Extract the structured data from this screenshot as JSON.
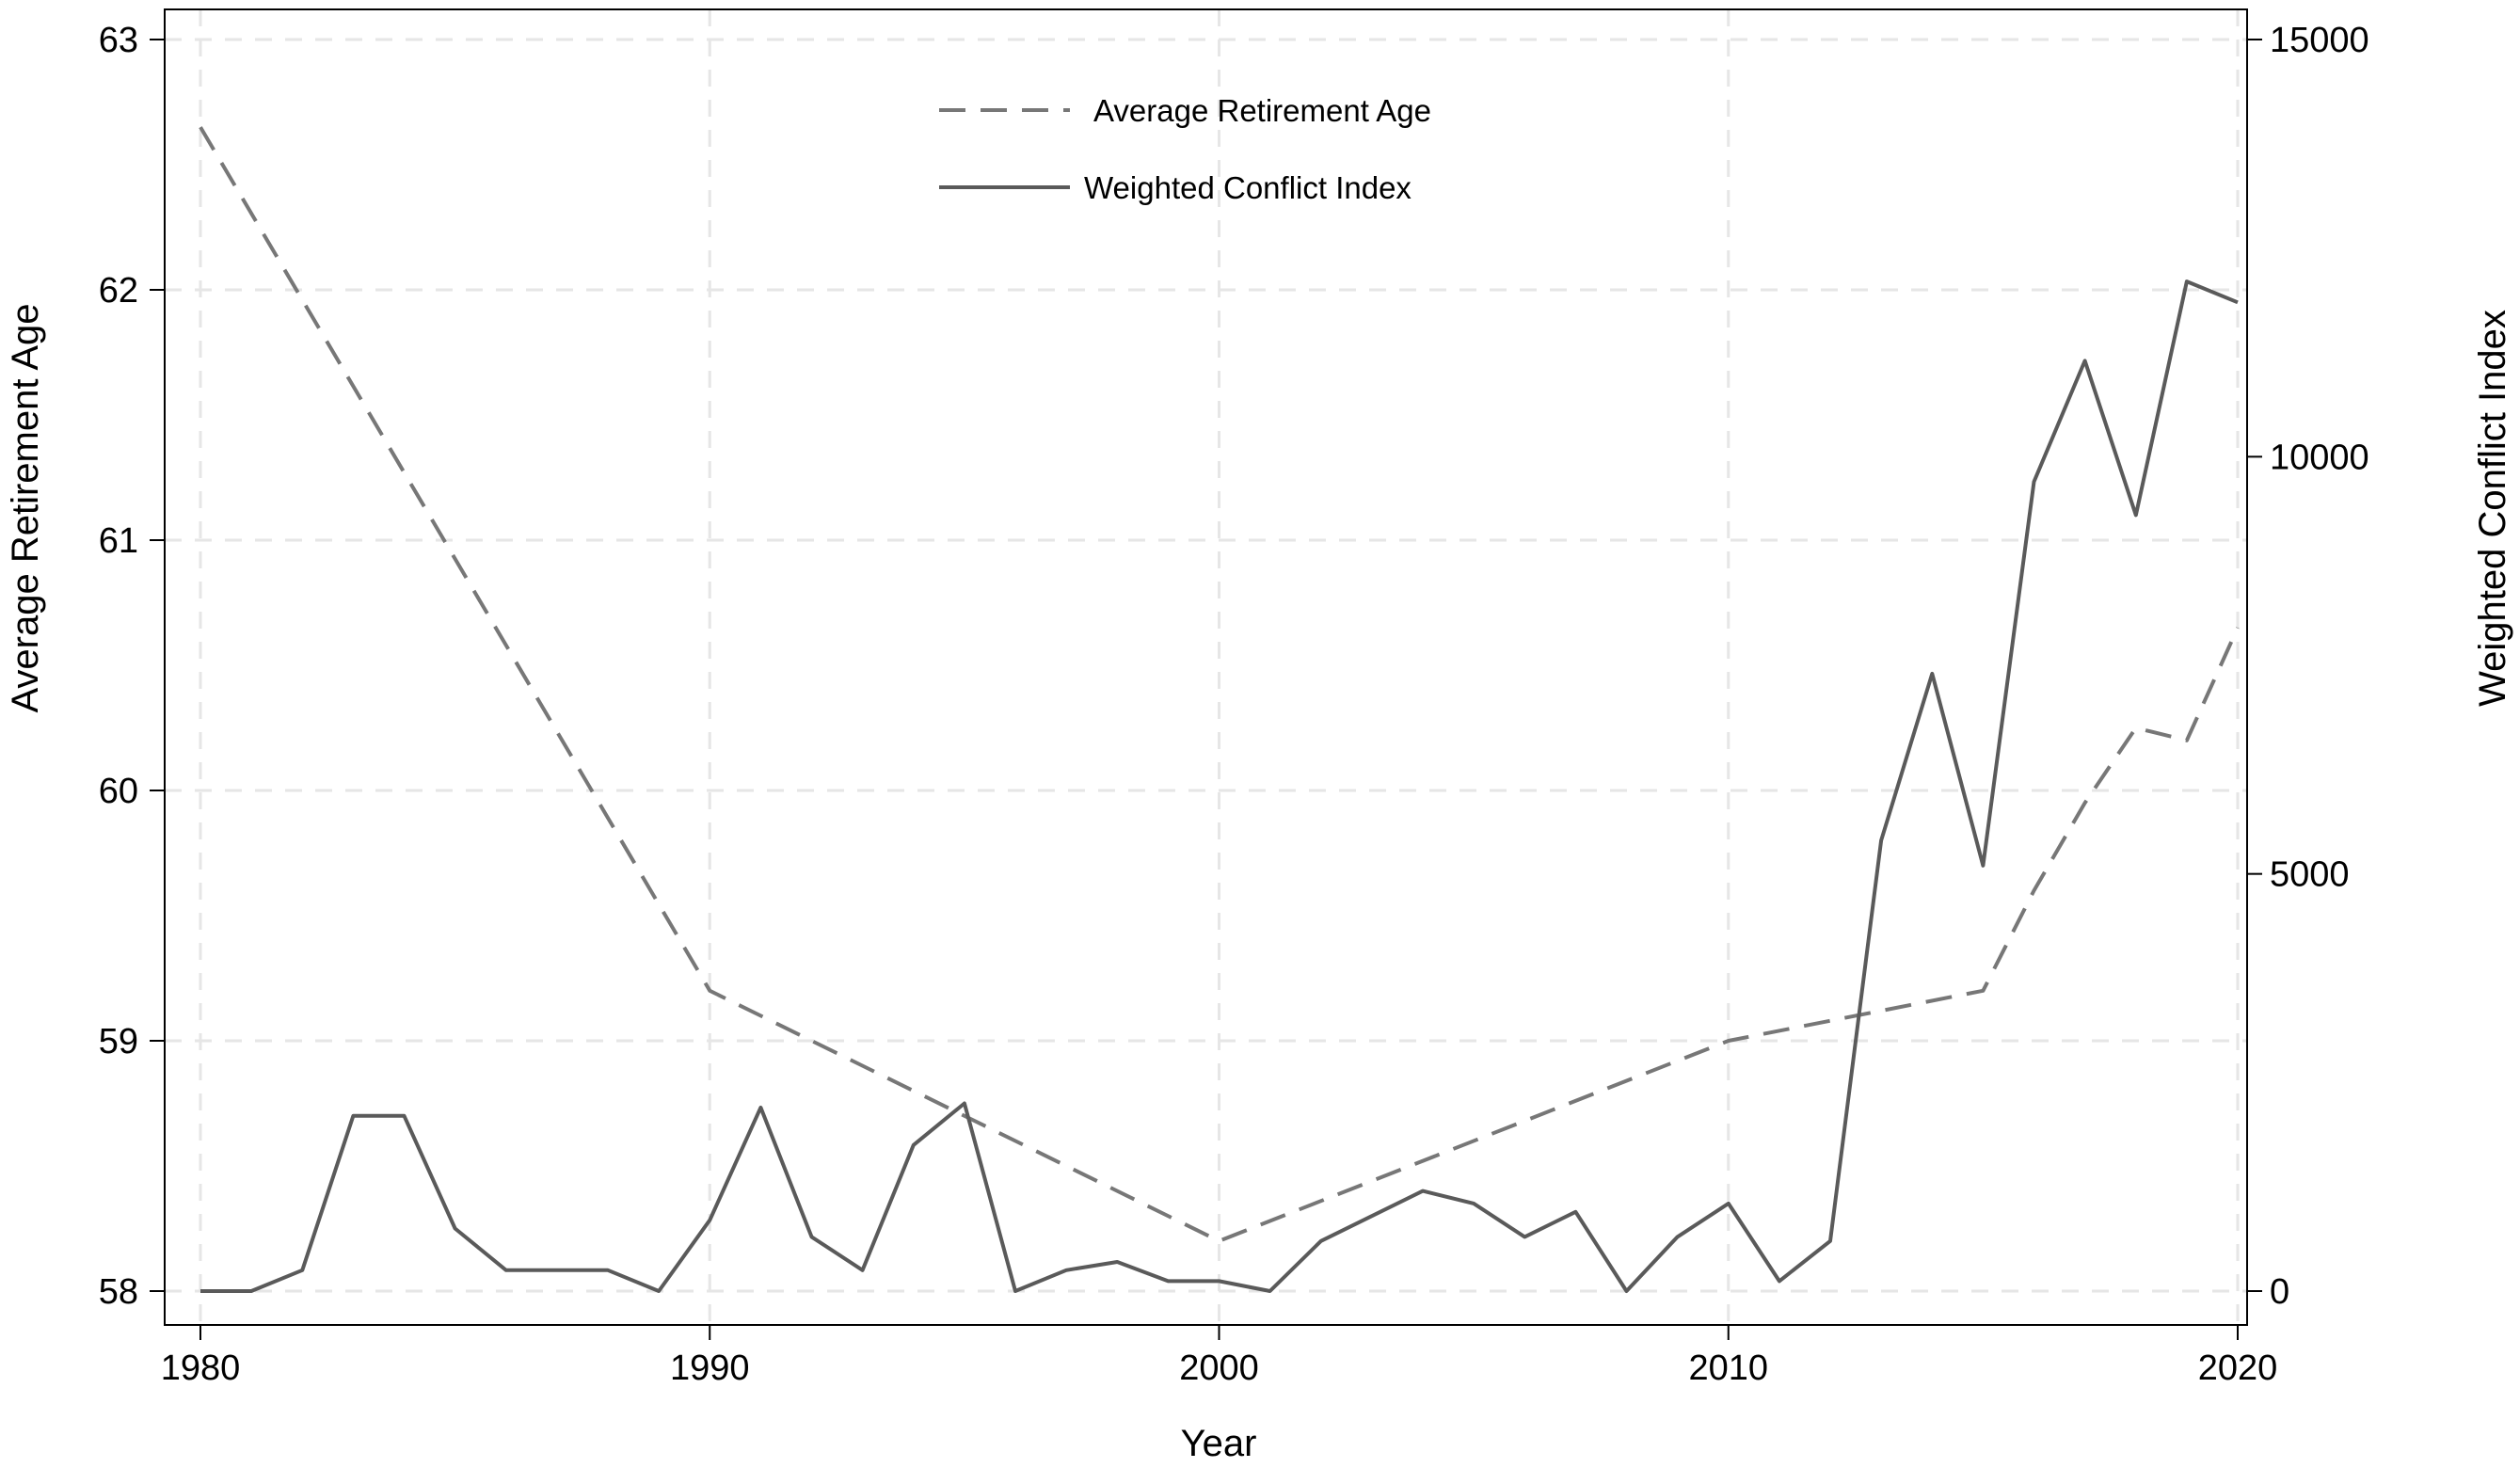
{
  "chart_data": {
    "type": "line",
    "xlabel": "Year",
    "ylabel_left": "Average Retirement Age",
    "ylabel_right": "Weighted Conflict Index",
    "xlim": [
      1980,
      2020
    ],
    "ylim_left": [
      58,
      63
    ],
    "ylim_right": [
      0,
      15000
    ],
    "x_ticks": [
      1980,
      1990,
      2000,
      2010,
      2020
    ],
    "y_left_ticks": [
      58,
      59,
      60,
      61,
      62,
      63
    ],
    "y_right_ticks": [
      0,
      5000,
      10000,
      15000
    ],
    "grid": true,
    "legend_position": "top-center",
    "legend": [
      "Average Retirement Age",
      "Weighted Conflict Index"
    ],
    "colors": {
      "retirement": "#777777",
      "conflict": "#5a5a5a",
      "grid": "#e6e6e6",
      "axis": "#000000"
    },
    "series": [
      {
        "name": "Average Retirement Age",
        "axis": "left",
        "style": "dashed",
        "x": [
          1980,
          1990,
          2000,
          2010,
          2015,
          2016,
          2017,
          2018,
          2019,
          2020
        ],
        "values": [
          62.65,
          59.2,
          58.2,
          59.0,
          59.2,
          59.6,
          59.95,
          60.25,
          60.2,
          60.65
        ]
      },
      {
        "name": "Weighted Conflict Index",
        "axis": "right",
        "style": "solid",
        "x": [
          1980,
          1981,
          1982,
          1983,
          1984,
          1985,
          1986,
          1987,
          1988,
          1989,
          1990,
          1991,
          1992,
          1993,
          1994,
          1995,
          1996,
          1997,
          1998,
          1999,
          2000,
          2001,
          2002,
          2003,
          2004,
          2005,
          2006,
          2007,
          2008,
          2009,
          2010,
          2011,
          2012,
          2013,
          2014,
          2015,
          2016,
          2017,
          2018,
          2019,
          2020
        ],
        "values": [
          0,
          0,
          250,
          2100,
          2100,
          750,
          250,
          250,
          250,
          0,
          850,
          2200,
          650,
          250,
          1750,
          2250,
          0,
          250,
          350,
          120,
          120,
          0,
          600,
          900,
          1200,
          1050,
          650,
          950,
          0,
          650,
          1050,
          120,
          600,
          5400,
          7400,
          5100,
          9700,
          11150,
          9300,
          12100,
          11850
        ]
      }
    ]
  }
}
